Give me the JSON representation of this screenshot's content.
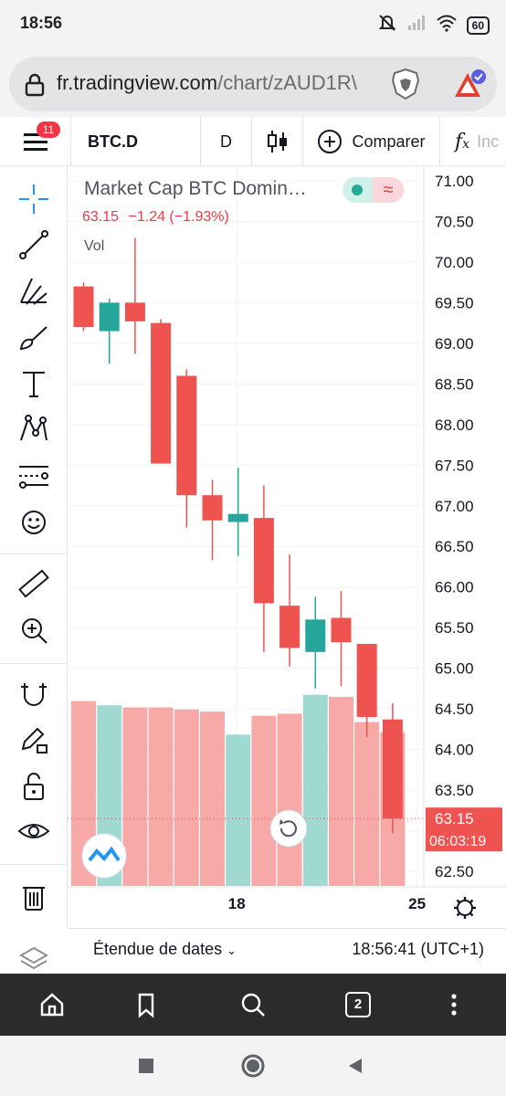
{
  "status": {
    "time": "18:56",
    "battery": "60"
  },
  "browser": {
    "url_host": "fr.tradingview.com",
    "url_path": "/chart/zAUD1R\\",
    "tab_count": "2"
  },
  "toolbar": {
    "badge": "11",
    "symbol": "BTC.D",
    "interval": "D",
    "compare_label": "Comparer",
    "indicators_fragment": "Inc"
  },
  "legend": {
    "title": "Market Cap BTC Domin…",
    "value": "63.15",
    "change": "−1.24 (−1.93%)",
    "volume_label": "Vol"
  },
  "price_axis": {
    "current_price": "63.15",
    "countdown": "06:03:19"
  },
  "time_axis": {
    "labels": [
      "18",
      "25"
    ]
  },
  "footer": {
    "range_label": "Étendue de dates",
    "clock": "18:56:41 (UTC+1)"
  },
  "colors": {
    "up": "#26a69a",
    "down": "#ef5350",
    "up_vol": "#9fd9d2",
    "down_vol": "#f7a9a7",
    "accent": "#2962ff"
  },
  "chart_data": {
    "type": "candlestick",
    "title": "Market Cap BTC Domin…",
    "ylim": [
      62.3,
      71.1
    ],
    "y_ticks": [
      "71.00",
      "70.50",
      "70.00",
      "69.50",
      "69.00",
      "68.50",
      "68.00",
      "67.50",
      "67.00",
      "66.50",
      "66.00",
      "65.50",
      "65.00",
      "64.50",
      "64.00",
      "63.50",
      "63.00",
      "62.50"
    ],
    "x_labels": [
      {
        "label": "18",
        "index": 6
      },
      {
        "label": "25",
        "index": 13
      }
    ],
    "candles": [
      {
        "o": 69.7,
        "h": 69.75,
        "l": 69.15,
        "c": 69.2,
        "vol": 0.88
      },
      {
        "o": 69.15,
        "h": 69.55,
        "l": 68.75,
        "c": 69.5,
        "vol": 0.86
      },
      {
        "o": 69.5,
        "h": 70.3,
        "l": 68.87,
        "c": 69.27,
        "vol": 0.85
      },
      {
        "o": 69.25,
        "h": 69.3,
        "l": 67.52,
        "c": 67.52,
        "vol": 0.85
      },
      {
        "o": 68.6,
        "h": 68.68,
        "l": 66.73,
        "c": 67.13,
        "vol": 0.84
      },
      {
        "o": 67.13,
        "h": 67.32,
        "l": 66.33,
        "c": 66.82,
        "vol": 0.83
      },
      {
        "o": 66.8,
        "h": 67.47,
        "l": 66.38,
        "c": 66.9,
        "vol": 0.72
      },
      {
        "o": 66.85,
        "h": 67.25,
        "l": 65.2,
        "c": 65.8,
        "vol": 0.81
      },
      {
        "o": 65.77,
        "h": 66.4,
        "l": 65.02,
        "c": 65.25,
        "vol": 0.82
      },
      {
        "o": 65.2,
        "h": 65.88,
        "l": 64.75,
        "c": 65.6,
        "vol": 0.91
      },
      {
        "o": 65.62,
        "h": 65.95,
        "l": 64.78,
        "c": 65.32,
        "vol": 0.9
      },
      {
        "o": 65.3,
        "h": 65.3,
        "l": 64.15,
        "c": 64.4,
        "vol": 0.78
      },
      {
        "o": 64.37,
        "h": 64.57,
        "l": 62.97,
        "c": 63.15,
        "vol": 0.73
      }
    ]
  }
}
